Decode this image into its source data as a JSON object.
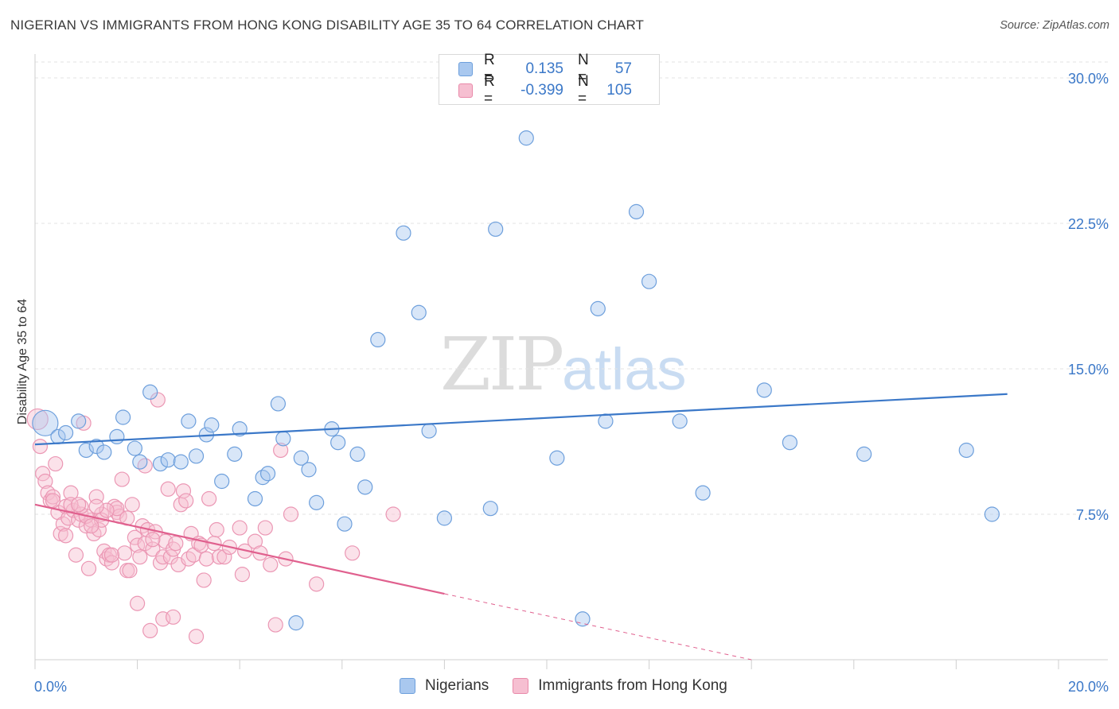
{
  "header": {
    "title": "NIGERIAN VS IMMIGRANTS FROM HONG KONG DISABILITY AGE 35 TO 64 CORRELATION CHART",
    "source": "Source: ZipAtlas.com"
  },
  "watermark": {
    "zip": "ZIP",
    "atlas": "atlas"
  },
  "legend": {
    "rows": [
      {
        "r_label": "R =",
        "r_value": "0.135",
        "n_label": "N =",
        "n_value": "57",
        "color": "#a9c8ef",
        "border": "#6d9fdc"
      },
      {
        "r_label": "R =",
        "r_value": "-0.399",
        "n_label": "N =",
        "n_value": "105",
        "color": "#f6bfd1",
        "border": "#e989a9"
      }
    ]
  },
  "bottom_legend": {
    "items": [
      {
        "label": "Nigerians",
        "color": "#a9c8ef",
        "border": "#6d9fdc"
      },
      {
        "label": "Immigrants from Hong Kong",
        "color": "#f6bfd1",
        "border": "#e989a9"
      }
    ]
  },
  "chart_data": {
    "type": "scatter",
    "title": "NIGERIAN VS IMMIGRANTS FROM HONG KONG DISABILITY AGE 35 TO 64 CORRELATION CHART",
    "xlabel": "",
    "ylabel": "Disability Age 35 to 64",
    "xlim": [
      0,
      20
    ],
    "ylim": [
      0,
      30
    ],
    "x_tick_labels": [
      "0.0%",
      "20.0%"
    ],
    "y_ticks": [
      7.5,
      15.0,
      22.5,
      30.0
    ],
    "y_tick_labels": [
      "7.5%",
      "15.0%",
      "22.5%",
      "30.0%"
    ],
    "grid": true,
    "colors": {
      "nigerians": "#3b78c8",
      "hongkong": "#e0608e"
    },
    "series": [
      {
        "name": "Nigerians",
        "trend": {
          "x": [
            0,
            19.0
          ],
          "y": [
            11.1,
            13.7
          ]
        },
        "points": [
          [
            0.2,
            12.2
          ],
          [
            0.45,
            11.5
          ],
          [
            0.85,
            12.3
          ],
          [
            1.0,
            10.8
          ],
          [
            1.2,
            11.0
          ],
          [
            1.35,
            10.7
          ],
          [
            1.6,
            11.5
          ],
          [
            1.72,
            12.5
          ],
          [
            1.95,
            10.9
          ],
          [
            2.05,
            10.2
          ],
          [
            2.25,
            13.8
          ],
          [
            2.45,
            10.1
          ],
          [
            2.6,
            10.3
          ],
          [
            2.85,
            10.2
          ],
          [
            3.0,
            12.3
          ],
          [
            3.15,
            10.5
          ],
          [
            3.35,
            11.6
          ],
          [
            3.45,
            12.1
          ],
          [
            3.65,
            9.2
          ],
          [
            3.9,
            10.6
          ],
          [
            4.0,
            11.9
          ],
          [
            4.3,
            8.3
          ],
          [
            4.45,
            9.4
          ],
          [
            4.55,
            9.6
          ],
          [
            4.75,
            13.2
          ],
          [
            4.85,
            11.4
          ],
          [
            5.2,
            10.4
          ],
          [
            5.35,
            9.8
          ],
          [
            5.5,
            8.1
          ],
          [
            5.8,
            11.9
          ],
          [
            5.92,
            11.2
          ],
          [
            6.05,
            7.0
          ],
          [
            6.3,
            10.6
          ],
          [
            6.45,
            8.9
          ],
          [
            6.7,
            16.5
          ],
          [
            7.2,
            22.0
          ],
          [
            7.5,
            17.9
          ],
          [
            7.7,
            11.8
          ],
          [
            8.0,
            7.3
          ],
          [
            8.9,
            7.8
          ],
          [
            9.0,
            22.2
          ],
          [
            9.6,
            26.9
          ],
          [
            10.2,
            10.4
          ],
          [
            10.7,
            2.1
          ],
          [
            11.0,
            18.1
          ],
          [
            11.15,
            12.3
          ],
          [
            11.75,
            23.1
          ],
          [
            12.0,
            19.5
          ],
          [
            12.6,
            12.3
          ],
          [
            13.05,
            8.6
          ],
          [
            14.25,
            13.9
          ],
          [
            14.75,
            11.2
          ],
          [
            16.2,
            10.6
          ],
          [
            18.2,
            10.8
          ],
          [
            18.7,
            7.5
          ],
          [
            0.6,
            11.7
          ],
          [
            5.1,
            1.9
          ]
        ]
      },
      {
        "name": "Immigrants from Hong Kong",
        "trend": {
          "x": [
            0,
            8.0
          ],
          "y": [
            8.0,
            3.4
          ]
        },
        "trend_dashed": {
          "x": [
            8.0,
            14.0
          ],
          "y": [
            3.4,
            0.0
          ]
        },
        "points": [
          [
            0.05,
            12.4
          ],
          [
            0.1,
            11.0
          ],
          [
            0.15,
            9.6
          ],
          [
            0.2,
            9.2
          ],
          [
            0.25,
            8.6
          ],
          [
            0.3,
            8.2
          ],
          [
            0.35,
            8.4
          ],
          [
            0.4,
            10.1
          ],
          [
            0.45,
            7.6
          ],
          [
            0.5,
            6.5
          ],
          [
            0.55,
            7.0
          ],
          [
            0.6,
            7.9
          ],
          [
            0.65,
            7.3
          ],
          [
            0.7,
            8.6
          ],
          [
            0.75,
            7.7
          ],
          [
            0.8,
            5.4
          ],
          [
            0.85,
            7.2
          ],
          [
            0.9,
            7.5
          ],
          [
            0.95,
            12.2
          ],
          [
            1.0,
            6.9
          ],
          [
            1.05,
            4.7
          ],
          [
            1.1,
            7.2
          ],
          [
            1.15,
            6.5
          ],
          [
            1.2,
            8.4
          ],
          [
            1.25,
            6.7
          ],
          [
            1.3,
            7.5
          ],
          [
            1.35,
            5.6
          ],
          [
            1.4,
            5.2
          ],
          [
            1.45,
            5.4
          ],
          [
            1.5,
            5.0
          ],
          [
            1.55,
            7.9
          ],
          [
            1.6,
            7.6
          ],
          [
            1.65,
            7.4
          ],
          [
            1.7,
            9.3
          ],
          [
            1.75,
            5.5
          ],
          [
            1.8,
            4.6
          ],
          [
            1.85,
            4.6
          ],
          [
            1.9,
            8.0
          ],
          [
            1.95,
            6.3
          ],
          [
            2.0,
            5.9
          ],
          [
            2.05,
            5.3
          ],
          [
            2.1,
            6.9
          ],
          [
            2.15,
            6.0
          ],
          [
            2.2,
            6.7
          ],
          [
            2.25,
            1.5
          ],
          [
            2.3,
            5.7
          ],
          [
            2.35,
            6.6
          ],
          [
            2.4,
            13.4
          ],
          [
            2.45,
            5.0
          ],
          [
            2.5,
            5.3
          ],
          [
            2.55,
            6.1
          ],
          [
            2.6,
            8.8
          ],
          [
            2.65,
            5.3
          ],
          [
            2.7,
            5.7
          ],
          [
            2.75,
            6.0
          ],
          [
            2.8,
            4.9
          ],
          [
            2.85,
            8.0
          ],
          [
            2.9,
            8.7
          ],
          [
            2.95,
            8.2
          ],
          [
            3.0,
            5.2
          ],
          [
            3.05,
            6.5
          ],
          [
            3.1,
            5.4
          ],
          [
            3.15,
            1.2
          ],
          [
            3.2,
            6.0
          ],
          [
            3.25,
            5.9
          ],
          [
            3.3,
            4.1
          ],
          [
            3.35,
            5.2
          ],
          [
            3.4,
            8.3
          ],
          [
            3.5,
            6.0
          ],
          [
            3.55,
            6.7
          ],
          [
            3.6,
            5.3
          ],
          [
            3.7,
            5.3
          ],
          [
            3.8,
            5.8
          ],
          [
            4.0,
            6.8
          ],
          [
            4.05,
            4.4
          ],
          [
            4.1,
            5.6
          ],
          [
            4.3,
            6.1
          ],
          [
            4.4,
            5.5
          ],
          [
            4.5,
            6.8
          ],
          [
            4.6,
            4.9
          ],
          [
            4.7,
            1.8
          ],
          [
            4.8,
            10.8
          ],
          [
            4.9,
            5.2
          ],
          [
            5.0,
            7.5
          ],
          [
            5.5,
            3.9
          ],
          [
            6.2,
            5.5
          ],
          [
            7.0,
            7.5
          ],
          [
            1.0,
            7.4
          ],
          [
            1.3,
            7.2
          ],
          [
            0.9,
            7.9
          ],
          [
            2.0,
            2.9
          ],
          [
            2.5,
            2.1
          ],
          [
            2.7,
            2.2
          ],
          [
            1.6,
            7.8
          ],
          [
            1.4,
            7.7
          ],
          [
            0.7,
            8.0
          ],
          [
            1.1,
            6.9
          ],
          [
            0.6,
            6.4
          ],
          [
            1.8,
            7.3
          ],
          [
            2.15,
            10.0
          ],
          [
            0.35,
            8.2
          ],
          [
            0.85,
            8.0
          ],
          [
            1.5,
            5.4
          ],
          [
            2.3,
            6.2
          ],
          [
            1.2,
            7.9
          ]
        ]
      }
    ]
  }
}
